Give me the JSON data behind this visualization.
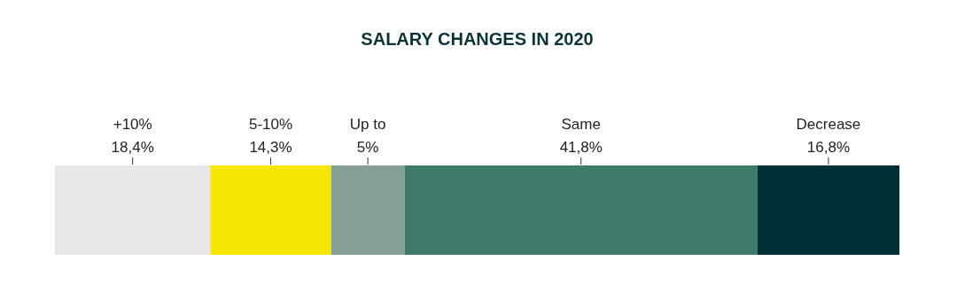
{
  "chart_data": {
    "type": "bar",
    "title": "SALARY CHANGES IN 2020",
    "orientation": "horizontal",
    "stacked": true,
    "categories": [
      null
    ],
    "xlim": [
      0,
      100
    ],
    "tick_labels": false,
    "legend": false,
    "series": [
      {
        "name": "+10%",
        "color": "#e6e7e8",
        "values": [
          18.4
        ],
        "value_labels": [
          "18,4%"
        ]
      },
      {
        "name": "5-10%",
        "color": "#f5e600",
        "values": [
          14.3
        ],
        "value_labels": [
          "14,3%"
        ]
      },
      {
        "name": "Up to 5%",
        "color": "#85a096",
        "values": [
          8.7
        ],
        "value_labels": [
          null
        ]
      },
      {
        "name": "Same",
        "color": "#3f7b6b",
        "values": [
          41.8
        ],
        "value_labels": [
          "41,8%"
        ]
      },
      {
        "name": "Decrease",
        "color": "#003035",
        "values": [
          16.8
        ],
        "value_labels": [
          "16,8%"
        ]
      }
    ]
  }
}
